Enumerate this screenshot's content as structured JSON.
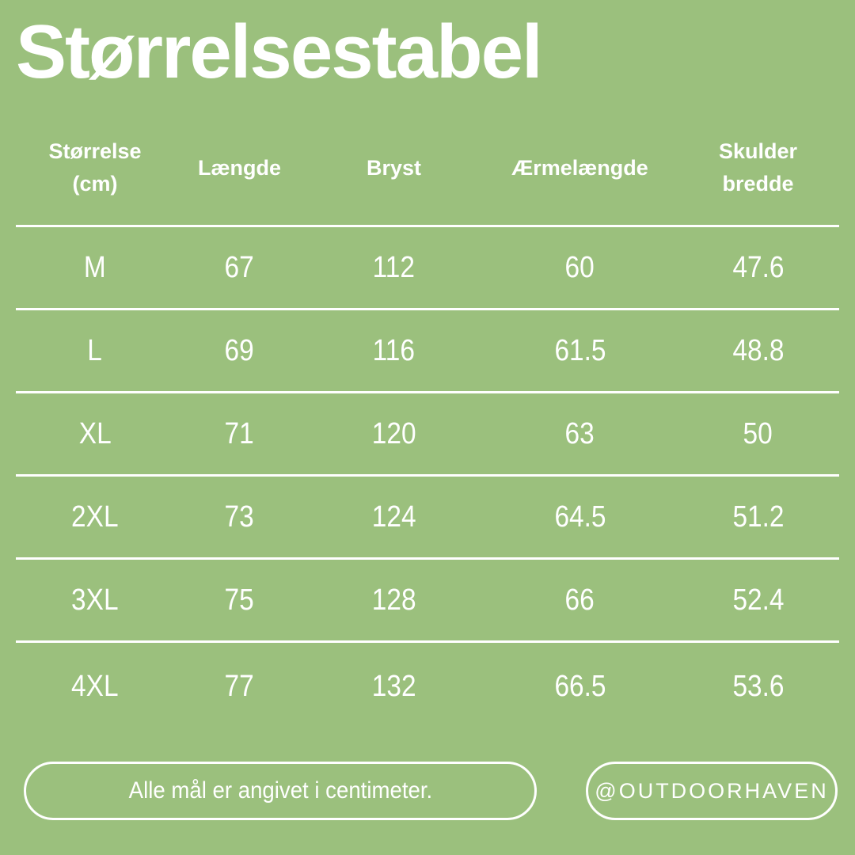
{
  "page": {
    "background_color": "#9bc07d",
    "text_color": "#ffffff",
    "divider_color": "#ffffff"
  },
  "title": "Størrelsestabel",
  "table": {
    "headers": [
      {
        "line1": "Størrelse",
        "line2": "(cm)"
      },
      {
        "line1": "Længde",
        "line2": ""
      },
      {
        "line1": "Bryst",
        "line2": ""
      },
      {
        "line1": "Ærmelængde",
        "line2": ""
      },
      {
        "line1": "Skulder",
        "line2": "bredde"
      }
    ],
    "rows": [
      [
        "M",
        "67",
        "112",
        "60",
        "47.6"
      ],
      [
        "L",
        "69",
        "116",
        "61.5",
        "48.8"
      ],
      [
        "XL",
        "71",
        "120",
        "63",
        "50"
      ],
      [
        "2XL",
        "73",
        "124",
        "64.5",
        "51.2"
      ],
      [
        "3XL",
        "75",
        "128",
        "66",
        "52.4"
      ],
      [
        "4XL",
        "77",
        "132",
        "66.5",
        "53.6"
      ]
    ]
  },
  "footer": {
    "note_pill": "Alle mål er angivet i centimeter.",
    "handle_pill": "@OUTDOORHAVEN"
  }
}
